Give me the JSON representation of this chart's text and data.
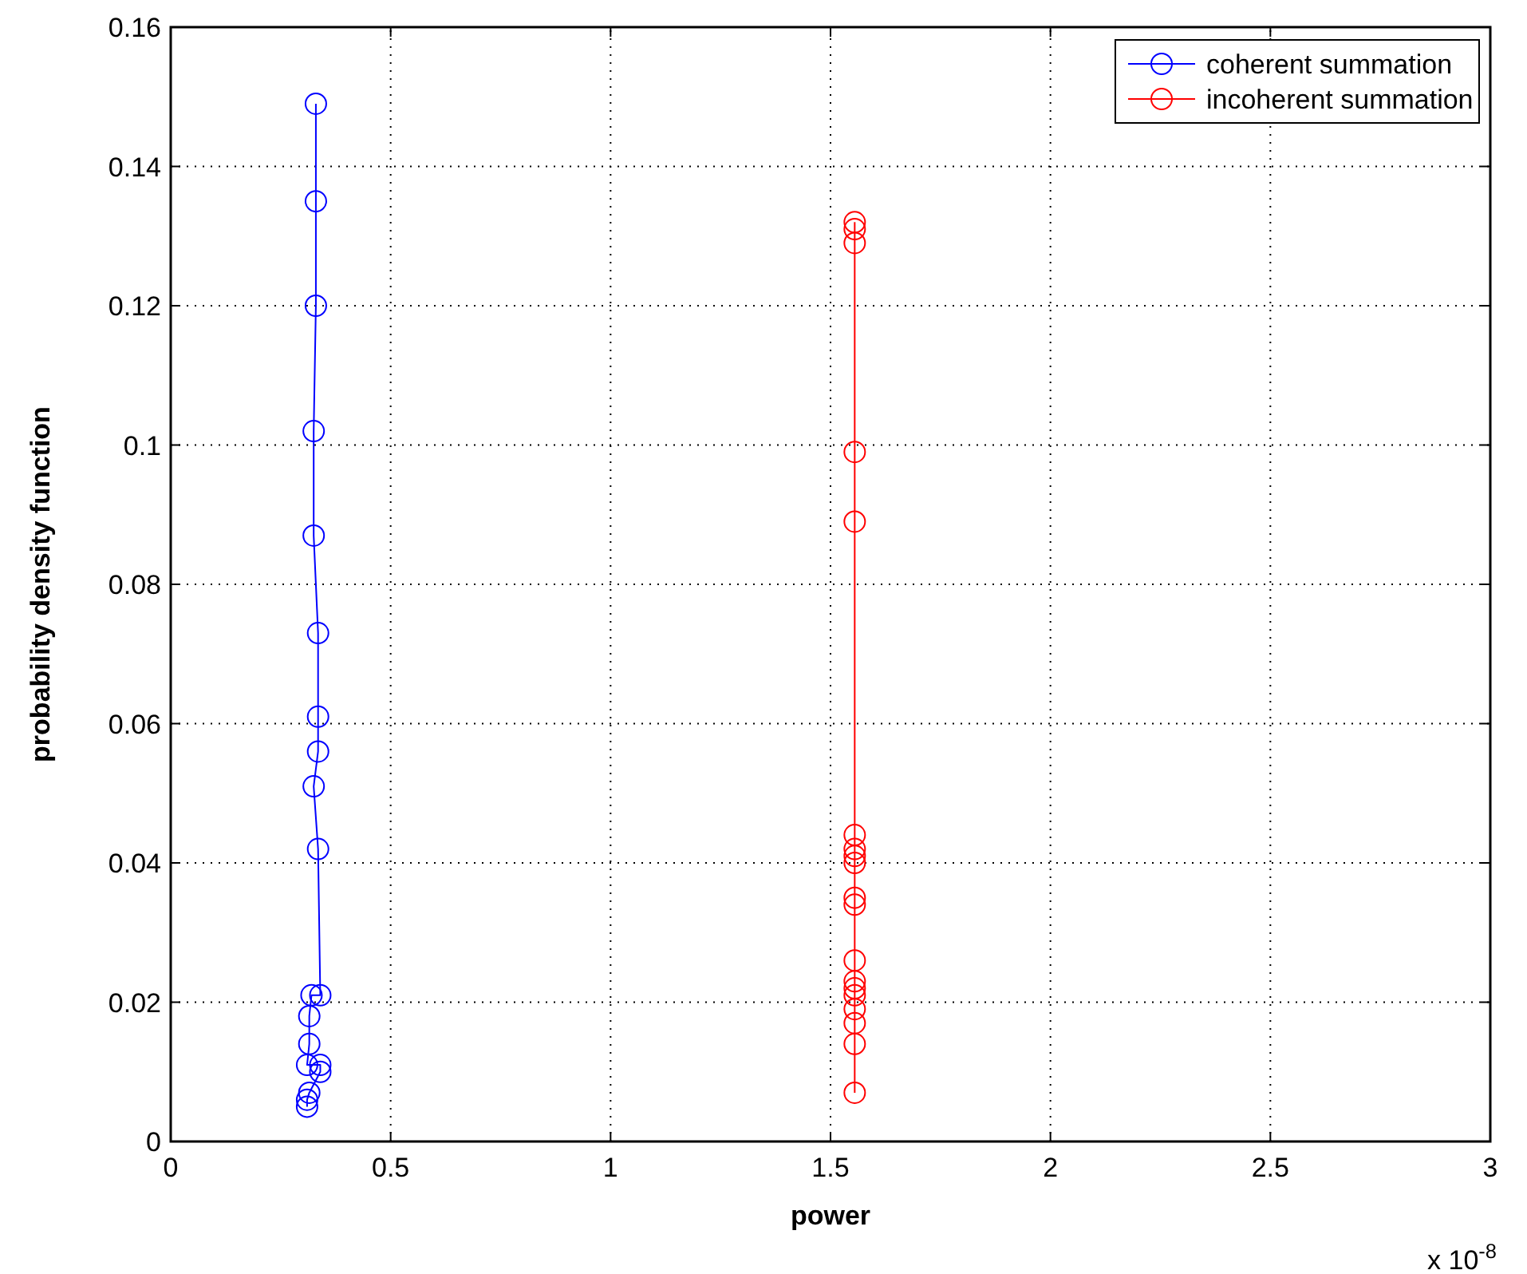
{
  "chart_data": {
    "type": "line",
    "xlabel": "power",
    "ylabel": "probability density function",
    "annotations": [
      "x 10$^{-8}$"
    ],
    "xlim": [
      0,
      3
    ],
    "xticks": [
      0,
      0.5,
      1,
      1.5,
      2,
      2.5,
      3
    ],
    "ylim": [
      0,
      0.16
    ],
    "yticks": [
      0,
      0.02,
      0.04,
      0.06,
      0.08,
      0.1,
      0.12,
      0.14,
      0.16
    ],
    "grid": true,
    "legend": "top right",
    "marker": "circle",
    "line_style": "solid",
    "series": [
      {
        "name": "coherent summation",
        "color": "#0000ff",
        "x": [
          0.33,
          0.33,
          0.33,
          0.325,
          0.325,
          0.335,
          0.335,
          0.335,
          0.325,
          0.335,
          0.34,
          0.32,
          0.315,
          0.315,
          0.31,
          0.34,
          0.34,
          0.315,
          0.31,
          0.31
        ],
        "values": [
          0.149,
          0.135,
          0.12,
          0.102,
          0.087,
          0.073,
          0.061,
          0.056,
          0.051,
          0.042,
          0.021,
          0.021,
          0.018,
          0.014,
          0.011,
          0.011,
          0.01,
          0.007,
          0.006,
          0.005
        ]
      },
      {
        "name": "incoherent summation",
        "color": "#ff0000",
        "x": [
          1.555,
          1.555,
          1.555,
          1.555,
          1.555,
          1.555,
          1.555,
          1.555,
          1.555,
          1.555,
          1.555,
          1.555,
          1.555,
          1.555,
          1.555,
          1.555,
          1.555,
          1.555,
          1.555
        ],
        "values": [
          0.132,
          0.131,
          0.129,
          0.099,
          0.089,
          0.044,
          0.042,
          0.041,
          0.04,
          0.035,
          0.034,
          0.026,
          0.023,
          0.022,
          0.021,
          0.019,
          0.017,
          0.014,
          0.007
        ]
      }
    ]
  }
}
